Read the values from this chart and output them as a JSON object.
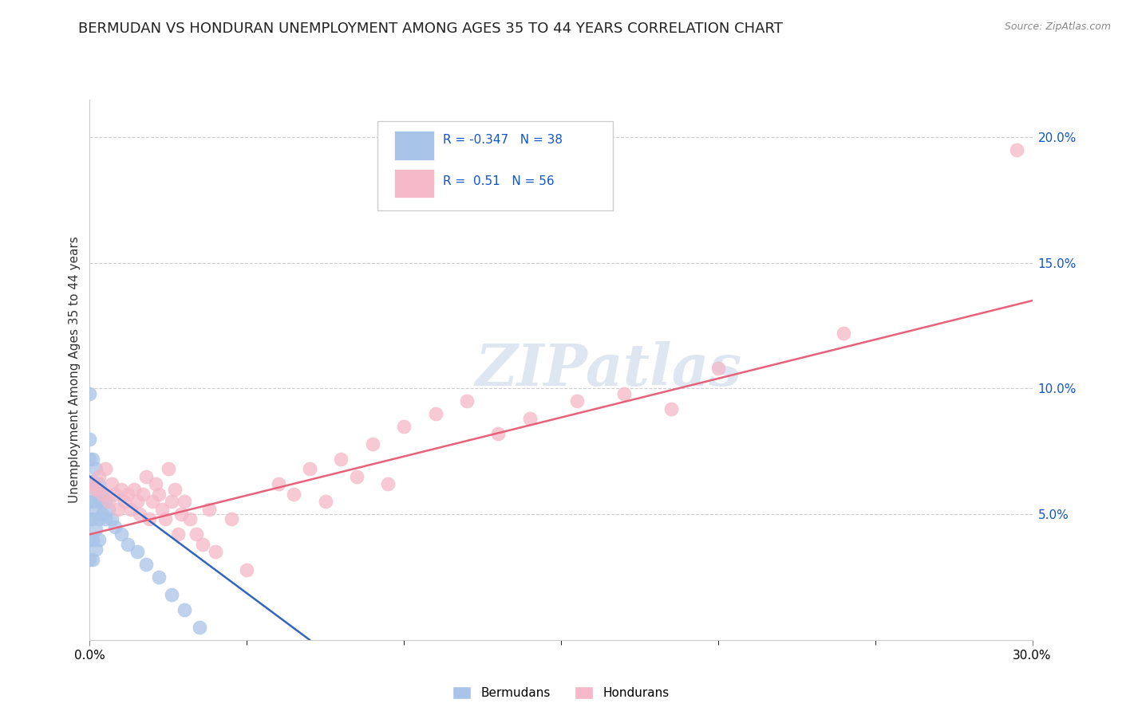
{
  "title": "BERMUDAN VS HONDURAN UNEMPLOYMENT AMONG AGES 35 TO 44 YEARS CORRELATION CHART",
  "source": "Source: ZipAtlas.com",
  "ylabel": "Unemployment Among Ages 35 to 44 years",
  "xlim": [
    0.0,
    0.3
  ],
  "ylim": [
    0.0,
    0.215
  ],
  "xticks": [
    0.0,
    0.3
  ],
  "xticklabels": [
    "0.0%",
    "30.0%"
  ],
  "yticks_right": [
    0.05,
    0.1,
    0.15,
    0.2
  ],
  "yticklabels_right": [
    "5.0%",
    "10.0%",
    "15.0%",
    "20.0%"
  ],
  "bermuda_color": "#a8c4e8",
  "honduran_color": "#f5b8c8",
  "bermuda_line_color": "#3366bb",
  "honduran_line_color": "#e8607a",
  "bermuda_R": -0.347,
  "bermuda_N": 38,
  "honduran_R": 0.51,
  "honduran_N": 56,
  "title_fontsize": 13,
  "axis_label_fontsize": 11,
  "tick_fontsize": 11,
  "legend_color": "#1155cc",
  "watermark_color": "#c8d8e8",
  "grid_color": "#cccccc",
  "background_color": "#ffffff",
  "bermuda_x": [
    0.0,
    0.0,
    0.0,
    0.0,
    0.0,
    0.0,
    0.0,
    0.0,
    0.001,
    0.001,
    0.001,
    0.001,
    0.001,
    0.001,
    0.002,
    0.002,
    0.002,
    0.002,
    0.002,
    0.003,
    0.003,
    0.003,
    0.003,
    0.004,
    0.004,
    0.005,
    0.005,
    0.006,
    0.007,
    0.008,
    0.01,
    0.012,
    0.015,
    0.018,
    0.022,
    0.026,
    0.03,
    0.035
  ],
  "bermuda_y": [
    0.098,
    0.08,
    0.072,
    0.063,
    0.055,
    0.048,
    0.04,
    0.032,
    0.072,
    0.063,
    0.055,
    0.048,
    0.04,
    0.032,
    0.068,
    0.06,
    0.052,
    0.044,
    0.036,
    0.062,
    0.055,
    0.048,
    0.04,
    0.058,
    0.05,
    0.055,
    0.048,
    0.052,
    0.048,
    0.045,
    0.042,
    0.038,
    0.035,
    0.03,
    0.025,
    0.018,
    0.012,
    0.005
  ],
  "honduran_x": [
    0.001,
    0.002,
    0.003,
    0.004,
    0.005,
    0.006,
    0.007,
    0.008,
    0.009,
    0.01,
    0.011,
    0.012,
    0.013,
    0.014,
    0.015,
    0.016,
    0.017,
    0.018,
    0.019,
    0.02,
    0.021,
    0.022,
    0.023,
    0.024,
    0.025,
    0.026,
    0.027,
    0.028,
    0.029,
    0.03,
    0.032,
    0.034,
    0.036,
    0.038,
    0.04,
    0.045,
    0.05,
    0.06,
    0.065,
    0.07,
    0.075,
    0.08,
    0.085,
    0.09,
    0.095,
    0.1,
    0.11,
    0.12,
    0.13,
    0.14,
    0.155,
    0.17,
    0.185,
    0.2,
    0.24,
    0.295
  ],
  "honduran_y": [
    0.062,
    0.06,
    0.065,
    0.058,
    0.068,
    0.055,
    0.062,
    0.058,
    0.052,
    0.06,
    0.055,
    0.058,
    0.052,
    0.06,
    0.055,
    0.05,
    0.058,
    0.065,
    0.048,
    0.055,
    0.062,
    0.058,
    0.052,
    0.048,
    0.068,
    0.055,
    0.06,
    0.042,
    0.05,
    0.055,
    0.048,
    0.042,
    0.038,
    0.052,
    0.035,
    0.048,
    0.028,
    0.062,
    0.058,
    0.068,
    0.055,
    0.072,
    0.065,
    0.078,
    0.062,
    0.085,
    0.09,
    0.095,
    0.082,
    0.088,
    0.095,
    0.098,
    0.092,
    0.108,
    0.122,
    0.195
  ],
  "bermuda_trend_x": [
    0.0,
    0.07
  ],
  "bermuda_trend_y": [
    0.065,
    0.0
  ],
  "honduran_trend_x": [
    0.0,
    0.3
  ],
  "honduran_trend_y": [
    0.042,
    0.135
  ]
}
